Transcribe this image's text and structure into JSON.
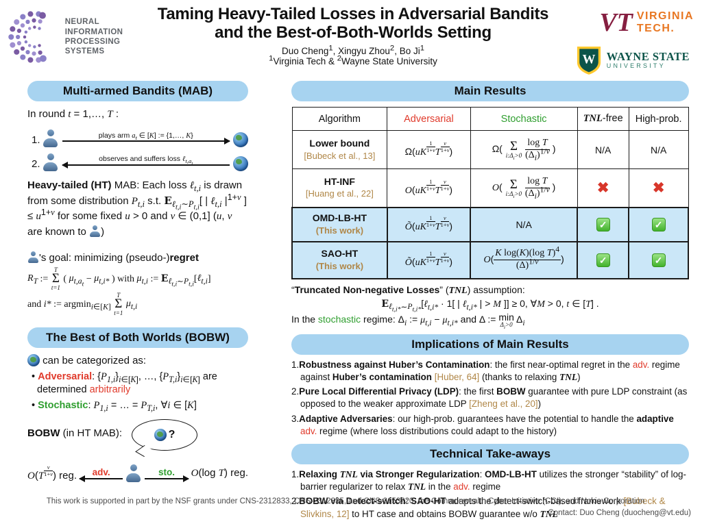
{
  "header": {
    "title_line1": "Taming Heavy-Tailed Losses in Adversarial Bandits",
    "title_line2": "and the Best-of-Both-Worlds Setting",
    "authors_html": "Duo Cheng<sup>1</sup>, Xingyu Zhou<sup>2</sup>, Bo Ji<sup>1</sup>",
    "affiliations_html": "<sup>1</sup>Virginia Tech &amp; <sup>2</sup>Wayne State University",
    "neurips_line1": "NEURAL INFORMATION",
    "neurips_line2": "PROCESSING SYSTEMS",
    "vt_mark": "VT",
    "vt_name_line1": "VIRGINIA",
    "vt_name_line2": "TECH.",
    "wayne_mark": "W",
    "wayne_name": "WAYNE STATE",
    "wayne_sub": "UNIVERSITY"
  },
  "mab": {
    "header": "Multi-armed Bandits (MAB)",
    "round_html": "In round <i>t</i> = 1,…, <i>T</i> :",
    "step1_num": "1.",
    "step1_label_html": "plays arm <i>a<sub>t</sub></i> ∈ [<i>K</i>] := {1,…, <i>K</i>}",
    "step2_num": "2.",
    "step2_label_html": "observes and suffers loss <i>ℓ<sub>t,a<sub>t</sub></sub></i>",
    "ht_html": "<b>Heavy-tailed (HT)</b> MAB: Each loss <i>ℓ<sub>t,i</sub></i> is drawn from some distribution <i>P<sub>t,i</sub></i> s.t. <span class='bb'>E</span><sub><i>ℓ<sub>t,i</sub></i>∼<i>P<sub>t,i</sub></i></sub>[ | <i>ℓ<sub>t,i</sub></i> |<sup>1+<i>v</i></sup> ] ≤ <i>u</i><sup>1+<i>v</i></sup> for some fixed <i>u</i> &gt; 0 and <i>v</i> ∈ (0,1] (<i>u</i>, <i>v</i> are known to <span class='pi' data-name='person-icon' data-interactable='false'></span>)",
    "goal_html": "<span class='pi' data-name='person-icon' data-interactable='false'></span>'s goal: minimizing (pseudo-)<b>regret</b>",
    "regret_html": "<i>R<sub>T</sub></i> := <span class='sm'><span class='top'>T</span><span class='sig'>Σ</span><span class='bot'>t=1</span></span> ( <i>μ<sub>t,a<sub>t</sub></sub></i> − <i>μ<sub>t,i*</sub></i> ) with <i>μ<sub>t,i</sub></i> := <span class='bb'>E</span><sub><i>ℓ<sub>t,i</sub></i>∼<i>P<sub>t,i</sub></i></sub>[<i>ℓ<sub>t,i</sub></i>]",
    "argmin_html": "and <i>i*</i> := argmin<sub><i>i</i>∈[<i>K</i>]</sub> <span class='sm'><span class='top'>T</span><span class='sig'>Σ</span><span class='bot'>t=1</span></span> <i>μ<sub>t,i</sub></i>"
  },
  "bobw": {
    "header": "The Best of Both Worlds (BOBW)",
    "intro_html": "<span class='gi' data-name='globe-icon' data-interactable='false'></span> can be categorized as:",
    "bullet1_html": "• <b class='red'>Adversarial</b>: {<i>P<sub>1,i</sub></i>}<sub><i>i</i>∈[<i>K</i>]</sub>, …, {<i>P<sub>T,i</sub></i>}<sub><i>i</i>∈[<i>K</i>]</sub> are determined <span class='red'>arbitrarily</span>",
    "bullet2_html": "• <b class='green'>Stochastic</b>: <i>P<sub>1,i</sub></i> = … = <i>P<sub>T,i</sub></i>, ∀<i>i</i> ∈ [<i>K</i>]",
    "diagram_label_html": "<b>BOBW</b> (in HT MAB):",
    "bubble_question": "?",
    "left_reg_html": "<i>O</i>(<i>T</i><span class='fx'><span class='t'><i>v</i></span><span class='b'>1+<i>v</i></span></span>) reg.",
    "adv_label": "adv.",
    "sto_label": "sto.",
    "right_reg_html": "<i>O</i>(log <i>T</i>) reg."
  },
  "results": {
    "header": "Main Results",
    "table": {
      "cols": [
        "Algorithm",
        "<span class='red'>Adversarial</span>",
        "<span class='green'>Stochastic</span>",
        "<b><i>TNL</i></b>-free",
        "High-prob."
      ],
      "rows": [
        {
          "name": "<b>Lower bound</b><br><span class='cite'>[Bubeck et al., 13]</span>",
          "adv": "Ω(<i>uK</i><span class='fx'><span class='t'>1</span><span class='b'>1+<i>v</i></span></span><i>T</i><span class='fx'><span class='t'><i>v</i></span><span class='b'>1+<i>v</i></span></span>)",
          "sto": "Ω( <span class='sm'><span class='sig'>Σ</span><span class='bot'>i:Δ<sub>i</sub>&gt;0</span></span> <span class='fb'><span class='t'>log <i>T</i></span><span class='b'>(Δ<sub><i>i</i></sub>)<sup>1/<i>v</i></sup></span></span> )",
          "tnl": "N/A",
          "hp": "N/A"
        },
        {
          "name": "<b>HT-INF</b><br><span class='cite'>[Huang et al., 22]</span>",
          "adv": "<i>O</i>(<i>uK</i><span class='fx'><span class='t'>1</span><span class='b'>1+<i>v</i></span></span><i>T</i><span class='fx'><span class='t'><i>v</i></span><span class='b'>1+<i>v</i></span></span>)",
          "sto": "<i>O</i>( <span class='sm'><span class='sig'>Σ</span><span class='bot'>i:Δ<sub>i</sub>&gt;0</span></span> <span class='fb'><span class='t'>log <i>T</i></span><span class='b'>(Δ<sub><i>i</i></sub>)<sup>1/<i>v</i></sup></span></span> )",
          "tnl": "<span class='cross' data-name='cross-icon' data-interactable='false'>✖</span>",
          "hp": "<span class='cross' data-name='cross-icon' data-interactable='false'>✖</span>"
        },
        {
          "name": "<b>OMD-LB-HT</b><br><span class='cite'>(This work)</span>",
          "adv": "<i>Õ</i>(<i>uK</i><span class='fx'><span class='t'>1</span><span class='b'>1+<i>v</i></span></span><i>T</i><span class='fx'><span class='t'><i>v</i></span><span class='b'>1+<i>v</i></span></span>)",
          "sto": "N/A",
          "tnl": "<span class='check' data-name='check-icon' data-interactable='false'>✓</span>",
          "hp": "<span class='check' data-name='check-icon' data-interactable='false'>✓</span>"
        },
        {
          "name": "<b>SAO-HT</b><br><span class='cite'>(This work)</span>",
          "adv": "<i>Õ</i>(<i>uK</i><span class='fx'><span class='t'>1</span><span class='b'>1+<i>v</i></span></span><i>T</i><span class='fx'><span class='t'><i>v</i></span><span class='b'>1+<i>v</i></span></span>)",
          "sto": "<i>O</i>(<span class='fb'><span class='t'><i>K</i> log(<i>K</i>)(log <i>T</i>)<sup>4</sup></span><span class='b'>(Δ)<sup>1/<i>v</i></sup></span></span>)",
          "tnl": "<span class='check' data-name='check-icon' data-interactable='false'>✓</span>",
          "hp": "<span class='check' data-name='check-icon' data-interactable='false'>✓</span>"
        }
      ]
    },
    "tnl_label_html": "“<b>Truncated Non-negative Losses</b>” (<b><i>TNL</i></b>) assumption:",
    "tnl_math_html": "<span class='bb'>E</span><sub><i>ℓ<sub>t,i*</sub></i>∼<i>P<sub>t,i*</sub></i></sub>[<i>ℓ<sub>t,i*</sub></i> · 1[ | <i>ℓ<sub>t,i*</sub></i> | &gt; <i>M</i> ]] ≥ 0, ∀<i>M</i> &gt; 0, <i>t</i> ∈ [<i>T</i>] .",
    "stochastic_line_html": "In the <span class='green'>stochastic</span> regime: Δ<sub><i>i</i></sub> := <i>μ<sub>t,i</sub></i> − <i>μ<sub>t,i*</sub></i> and Δ := <span class='mn'><span>min</span><span class='mbot'>Δ<sub>i</sub>&gt;0</span></span> Δ<sub><i>i</i></sub>"
  },
  "implications": {
    "header": "Implications of Main Results",
    "items": [
      "1.<b>Robustness against Huber’s Contamination</b>: the first near-optimal regret in the <span class='red'>adv.</span> regime against <b>Huber’s contamination</b> <span class='cite'>[Huber, 64]</span> (thanks to relaxing <b><i>TNL</i></b>)",
      "2.<b>Pure Local Differential Privacy (LDP)</b>: the first <b>BOBW</b> guarantee with pure LDP constraint (as opposed to the weaker approximate LDP <span class='cite'>[Zheng et al., 20]</span>)",
      "3.<b>Adaptive Adversaries</b>: our high-prob. guarantees have the potential to handle the <b>adaptive</b> <span class='red'>adv.</span> regime (where loss distributions could adapt to the history)"
    ]
  },
  "takeaways": {
    "header": "Technical Take-aways",
    "items": [
      "1.<b>Relaxing <i>TNL</i> via Stronger Regularization</b>: <b>OMD-LB-HT</b> utilizes the stronger “stability” of log-barrier regularizer to relax <b><i>TNL</i></b> in the <span class='red'>adv.</span> regime",
      "2.<b>BOBW via Detect-switch</b>: <b>SAO-HT</b> adapts the detect-switch-based framework <span class='cite'>[Bubeck &amp; Slivkins, 12]</span> to HT case and obtains BOBW guarantee w/o <b><i>TNL</i></b>"
    ]
  },
  "footer": {
    "line1": "This work is supported in part by the NSF grants under CNS-2312833, CNS-2312835, and CNS-2153220, the Commonwealth Cyber Initiative (CCI), and Nokia Corporation",
    "line2": "Contact: Duo Cheng (duocheng@vt.edu)"
  }
}
